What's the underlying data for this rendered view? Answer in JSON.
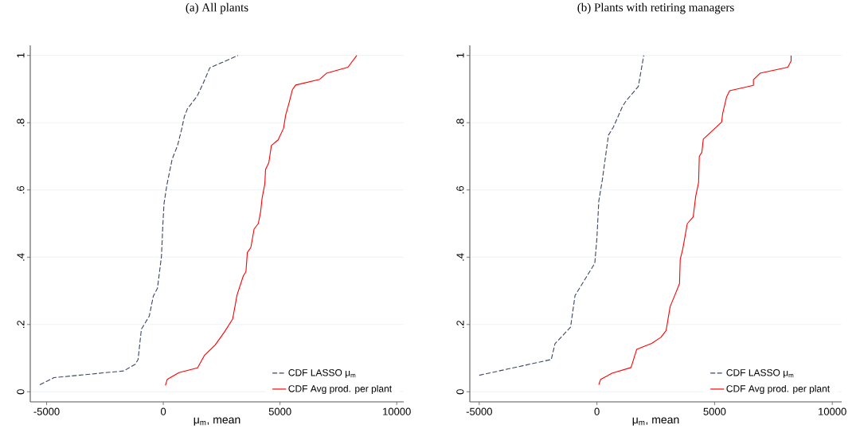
{
  "chart_data": [
    {
      "type": "line",
      "title": "(a)  All plants",
      "xlabel": "μ$_{m}$, mean",
      "xlim": [
        -5700,
        10300
      ],
      "ylim": [
        -0.03,
        1.03
      ],
      "xticks": [
        -5000,
        0,
        5000,
        10000
      ],
      "yticks": [
        0,
        {
          "value": 0.2,
          "label": ".2"
        },
        {
          "value": 0.4,
          "label": ".4"
        },
        {
          "value": 0.6,
          "label": ".6"
        },
        {
          "value": 0.8,
          "label": ".8"
        },
        1
      ],
      "grid": "y",
      "legend": "bottom right",
      "series": [
        {
          "name": "CDF LASSO μ$_{m}$",
          "color": "#3a4663",
          "line_style": "dashed",
          "x": [
            -5290,
            -4680,
            -1690,
            -1200,
            -1080,
            -940,
            -600,
            -430,
            -250,
            -80,
            -20,
            30,
            150,
            380,
            610,
            780,
            900,
            1030,
            1450,
            1700,
            1990,
            3200
          ],
          "values": [
            0.021,
            0.042,
            0.062,
            0.082,
            0.096,
            0.186,
            0.225,
            0.284,
            0.308,
            0.402,
            0.496,
            0.559,
            0.614,
            0.692,
            0.732,
            0.779,
            0.818,
            0.841,
            0.879,
            0.916,
            0.963,
            1.0
          ]
        },
        {
          "name": "CDF Avg prod. per plant",
          "color": "#ff0000",
          "line_style": "solid",
          "x": [
            90,
            170,
            670,
            1470,
            1760,
            2220,
            2620,
            2970,
            3160,
            3430,
            3540,
            3600,
            3750,
            3890,
            4070,
            4170,
            4230,
            4350,
            4380,
            4520,
            4630,
            4920,
            5150,
            5240,
            5380,
            5530,
            5670,
            6700,
            6990,
            7910,
            8290
          ],
          "values": [
            0.019,
            0.037,
            0.057,
            0.071,
            0.108,
            0.139,
            0.178,
            0.216,
            0.288,
            0.345,
            0.357,
            0.414,
            0.429,
            0.484,
            0.5,
            0.535,
            0.575,
            0.618,
            0.661,
            0.681,
            0.732,
            0.749,
            0.783,
            0.822,
            0.857,
            0.898,
            0.912,
            0.929,
            0.947,
            0.965,
            1.0
          ]
        }
      ]
    },
    {
      "type": "line",
      "title": "(b)  Plants with retiring managers",
      "xlabel": "μ$_{m}$, mean",
      "xlim": [
        -5400,
        10400
      ],
      "ylim": [
        -0.03,
        1.03
      ],
      "xticks": [
        -5000,
        0,
        5000,
        10000
      ],
      "yticks": [
        0,
        {
          "value": 0.2,
          "label": ".2"
        },
        {
          "value": 0.4,
          "label": ".4"
        },
        {
          "value": 0.6,
          "label": ".6"
        },
        {
          "value": 0.8,
          "label": ".8"
        },
        1
      ],
      "grid": "y",
      "legend": "bottom right",
      "series": [
        {
          "name": "CDF LASSO μ$_{m}$",
          "color": "#3a4663",
          "line_style": "dashed",
          "x": [
            -5000,
            -1940,
            -1780,
            -1120,
            -930,
            -90,
            0,
            80,
            230,
            490,
            700,
            1090,
            1240,
            1760,
            1990
          ],
          "values": [
            0.049,
            0.096,
            0.143,
            0.192,
            0.286,
            0.382,
            0.457,
            0.567,
            0.63,
            0.763,
            0.787,
            0.849,
            0.865,
            0.908,
            1.0
          ]
        },
        {
          "name": "CDF Avg prod. per plant",
          "color": "#ff0000",
          "line_style": "solid",
          "x": [
            80,
            160,
            640,
            1450,
            1690,
            2330,
            2720,
            2940,
            3110,
            3340,
            3510,
            3540,
            3650,
            3840,
            4090,
            4200,
            4320,
            4350,
            4460,
            4520,
            5300,
            5340,
            5510,
            5640,
            6650,
            6650,
            6930,
            8110,
            8250,
            8250
          ],
          "values": [
            0.021,
            0.037,
            0.055,
            0.072,
            0.126,
            0.144,
            0.162,
            0.182,
            0.253,
            0.292,
            0.322,
            0.394,
            0.425,
            0.5,
            0.52,
            0.582,
            0.622,
            0.7,
            0.712,
            0.751,
            0.802,
            0.826,
            0.877,
            0.895,
            0.911,
            0.928,
            0.947,
            0.965,
            0.983,
            1.0
          ]
        }
      ]
    }
  ]
}
